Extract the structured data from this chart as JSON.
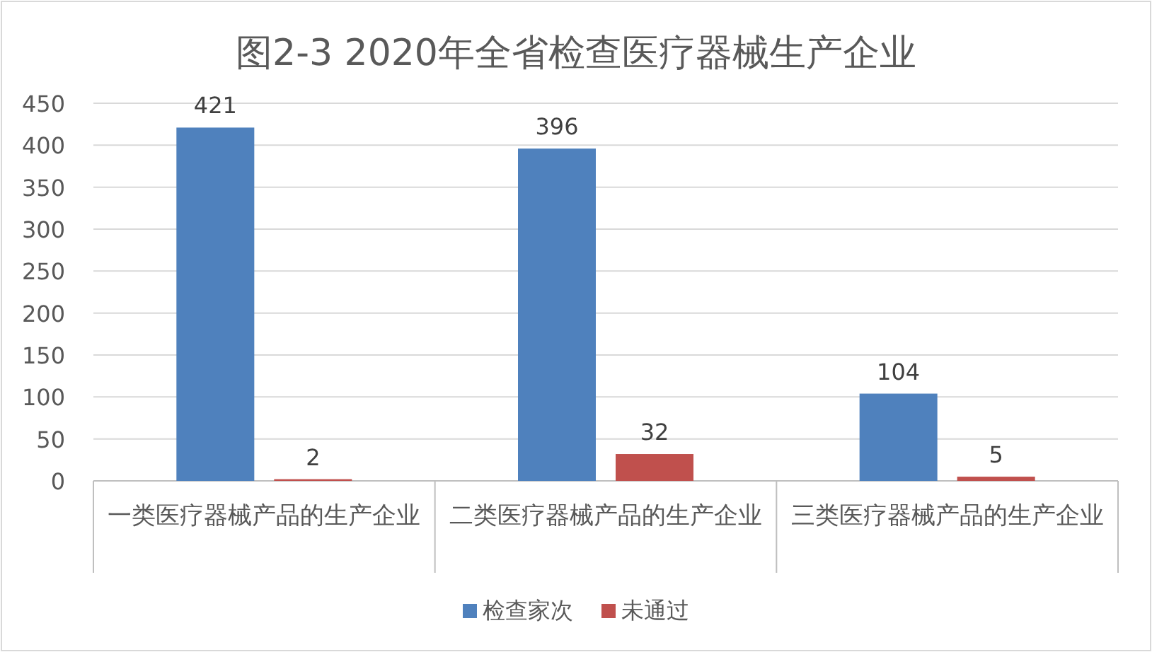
{
  "chart_data": {
    "type": "bar",
    "title": "图2-3  2020年全省检查医疗器械生产企业",
    "categories": [
      "一类医疗器械产品的生产企业",
      "二类医疗器械产品的生产企业",
      "三类医疗器械产品的生产企业"
    ],
    "series": [
      {
        "name": "检查家次",
        "color": "#4f81bd",
        "values": [
          421,
          396,
          104
        ]
      },
      {
        "name": "未通过",
        "color": "#c0504d",
        "values": [
          2,
          32,
          5
        ]
      }
    ],
    "ylim": [
      0,
      450
    ],
    "yticks": [
      0,
      50,
      100,
      150,
      200,
      250,
      300,
      350,
      400,
      450
    ],
    "grid": "y",
    "legend": "bottom",
    "data_labels": true
  }
}
